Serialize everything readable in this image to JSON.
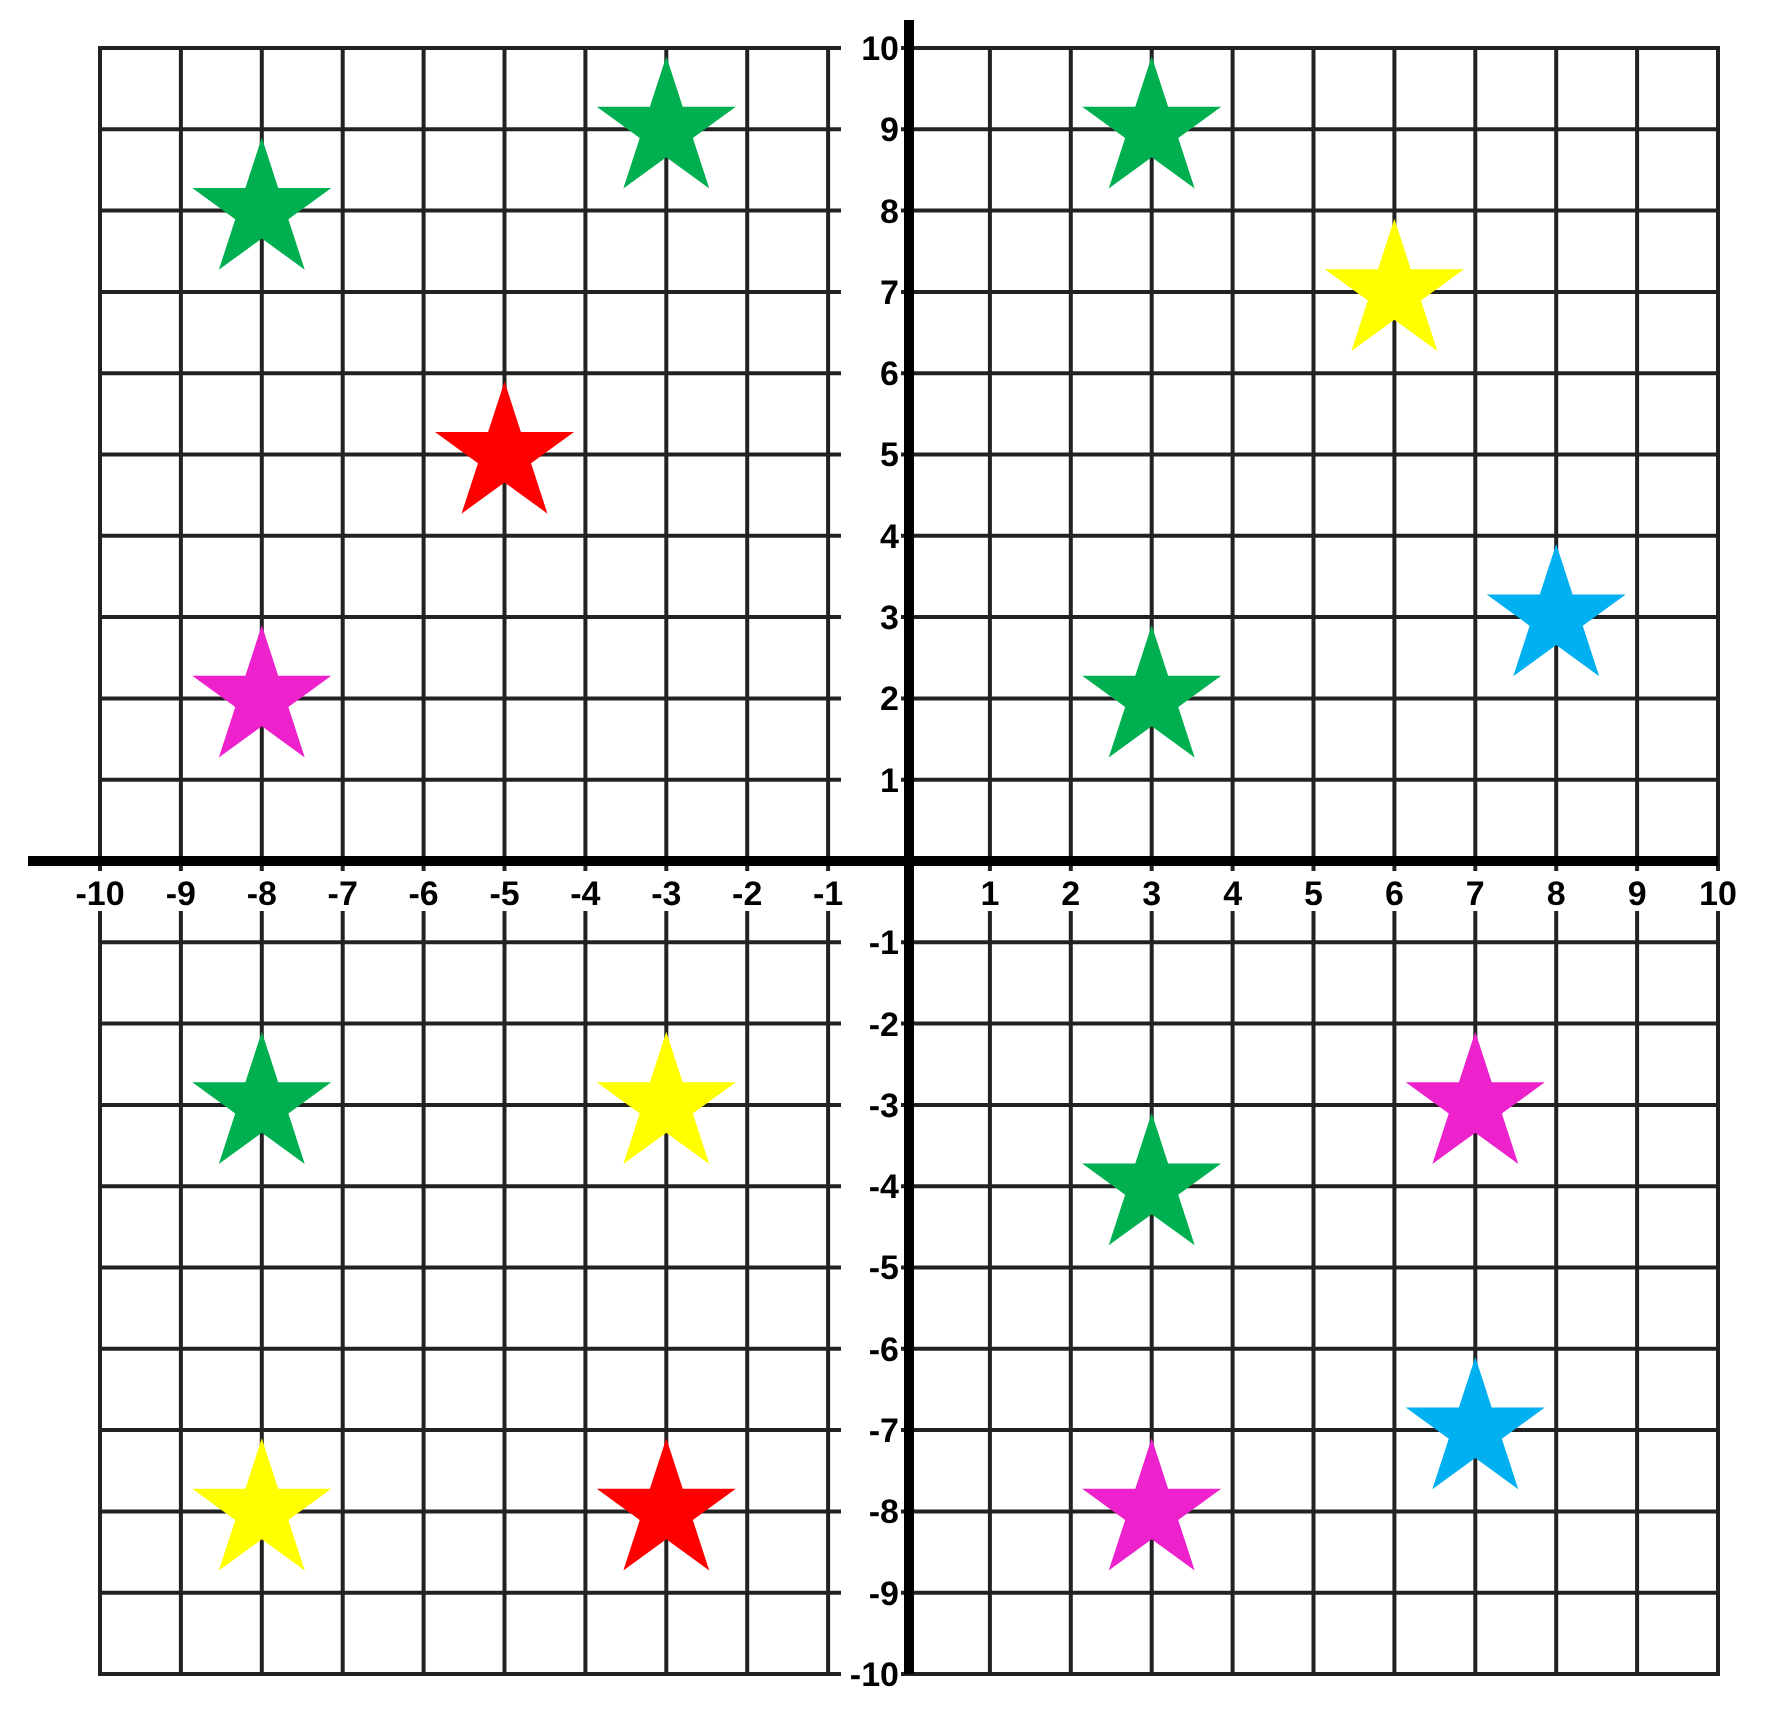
{
  "chart_data": {
    "type": "scatter",
    "marker": "star",
    "grid": true,
    "xlim": [
      -10,
      10
    ],
    "ylim": [
      -10,
      10
    ],
    "xticks": [
      -10,
      -9,
      -8,
      -7,
      -6,
      -5,
      -4,
      -3,
      -2,
      -1,
      1,
      2,
      3,
      4,
      5,
      6,
      7,
      8,
      9,
      10
    ],
    "yticks": [
      -10,
      -9,
      -8,
      -7,
      -6,
      -5,
      -4,
      -3,
      -2,
      -1,
      1,
      2,
      3,
      4,
      5,
      6,
      7,
      8,
      9,
      10
    ],
    "series": [
      {
        "color": "#00b050",
        "x": [
          -8,
          -3,
          3,
          3,
          -8,
          3
        ],
        "values": [
          8,
          9,
          9,
          2,
          -3,
          -4
        ]
      },
      {
        "color": "#ff0000",
        "x": [
          -5,
          -3
        ],
        "values": [
          5,
          -8
        ]
      },
      {
        "color": "#ffff00",
        "x": [
          6,
          -3,
          -8
        ],
        "values": [
          7,
          -3,
          -8
        ]
      },
      {
        "color": "#ee22cc",
        "x": [
          -8,
          7,
          3
        ],
        "values": [
          2,
          -3,
          -8
        ]
      },
      {
        "color": "#00b0f0",
        "x": [
          8,
          7
        ],
        "values": [
          3,
          -7
        ]
      }
    ]
  }
}
